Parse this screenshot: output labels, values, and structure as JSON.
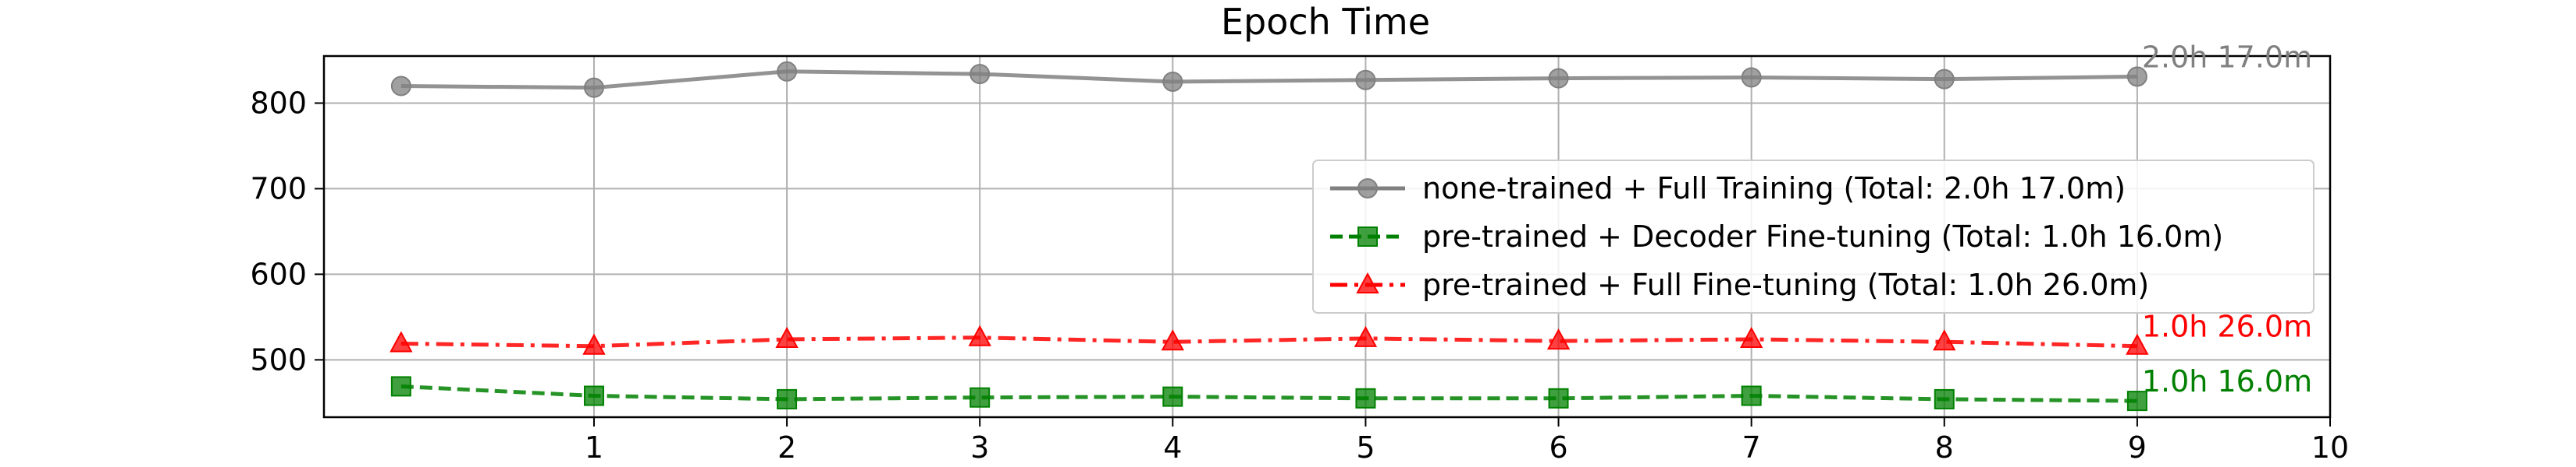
{
  "chart_data": {
    "type": "line",
    "title": "Epoch Time",
    "xlabel": "",
    "ylabel": "",
    "xlim": [
      -0.4,
      10
    ],
    "ylim": [
      433,
      855
    ],
    "xticks": [
      1,
      2,
      3,
      4,
      5,
      6,
      7,
      8,
      9,
      10
    ],
    "yticks": [
      500,
      600,
      700,
      800
    ],
    "grid": true,
    "legend_position": "center-right",
    "x": [
      0,
      1,
      2,
      3,
      4,
      5,
      6,
      7,
      8,
      9
    ],
    "series": [
      {
        "name": "none-trained + Full Training (Total: 2.0h 17.0m)",
        "color": "#808080",
        "marker": "circle",
        "linestyle": "solid",
        "values": [
          820,
          818,
          837,
          834,
          825,
          827,
          829,
          830,
          828,
          831
        ],
        "end_label": "2.0h 17.0m"
      },
      {
        "name": "pre-trained + Decoder Fine-tuning (Total: 1.0h 16.0m)",
        "color": "#008000",
        "marker": "square",
        "linestyle": "dashed",
        "values": [
          469,
          458,
          454,
          456,
          457,
          455,
          455,
          458,
          454,
          452
        ],
        "end_label": "1.0h 16.0m"
      },
      {
        "name": "pre-trained + Full Fine-tuning (Total: 1.0h 26.0m)",
        "color": "#ff0000",
        "marker": "triangle",
        "linestyle": "dashdot",
        "values": [
          519,
          516,
          524,
          526,
          521,
          525,
          522,
          524,
          521,
          516
        ],
        "end_label": "1.0h 26.0m"
      }
    ]
  }
}
